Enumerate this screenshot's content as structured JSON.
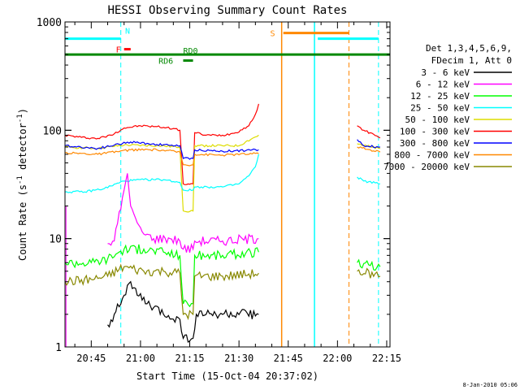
{
  "chart_data": {
    "type": "line",
    "title": "HESSI Observing Summary Count Rates",
    "xlabel": "Start Time (15-Oct-04 20:37:02)",
    "ylabel_main": "Count Rate (s",
    "ylabel_exp": "-1",
    "ylabel_tail": " detector",
    "ylabel_close": ")",
    "footer_date": "8-Jan-2010 05:06",
    "y_scale": "log",
    "ylim": [
      1,
      1000
    ],
    "xlim_minutes": [
      0,
      99
    ],
    "x_tick_labels": [
      "20:45",
      "21:00",
      "21:15",
      "21:30",
      "21:45",
      "22:00",
      "22:15"
    ],
    "x_tick_minutes": [
      8,
      23,
      38,
      53,
      68,
      83,
      98
    ],
    "y_tick_labels": [
      "1",
      "10",
      "100",
      "1000"
    ],
    "y_tick_values": [
      1,
      10,
      100,
      1000
    ],
    "legend_title": [
      "Det 1,3,4,5,6,9,",
      "FDecim 1, Att 0"
    ],
    "legend": [
      {
        "name": "3 - 6 keV",
        "color": "#000000"
      },
      {
        "name": "6 - 12 keV",
        "color": "#ff00ff"
      },
      {
        "name": "12 - 25 keV",
        "color": "#00ff00"
      },
      {
        "name": "25 - 50 keV",
        "color": "#00ffff"
      },
      {
        "name": "50 - 100 keV",
        "color": "#dddd00"
      },
      {
        "name": "100 - 300 keV",
        "color": "#ff0000"
      },
      {
        "name": "300 - 800 keV",
        "color": "#0000ff"
      },
      {
        "name": "800 - 7000 keV",
        "color": "#ff8800"
      },
      {
        "name": "7000 - 20000 keV",
        "color": "#888800"
      }
    ],
    "flags": [
      {
        "label": "N",
        "color": "#00ffff"
      },
      {
        "label": "F",
        "color": "#ff0000"
      },
      {
        "label": "RD0",
        "color": "#008800"
      },
      {
        "label": "RD6",
        "color": "#008800"
      },
      {
        "label": "S",
        "color": "#ff8800"
      }
    ],
    "series": [
      {
        "name": "100 - 300 keV",
        "color": "#ff0000",
        "segments": [
          [
            [
              0,
              90
            ],
            [
              5,
              86
            ],
            [
              10,
              84
            ],
            [
              14,
              90
            ],
            [
              18,
              105
            ],
            [
              23,
              110
            ],
            [
              28,
              108
            ],
            [
              33,
              104
            ],
            [
              35,
              100
            ],
            [
              36,
              32
            ],
            [
              39,
              32
            ],
            [
              39.5,
              95
            ],
            [
              43,
              90
            ],
            [
              48,
              90
            ],
            [
              52,
              95
            ],
            [
              56,
              110
            ],
            [
              58,
              140
            ],
            [
              59,
              175
            ]
          ],
          [
            [
              89,
              110
            ],
            [
              91,
              100
            ],
            [
              94,
              92
            ],
            [
              96,
              85
            ]
          ]
        ]
      },
      {
        "name": "50 - 100 keV",
        "color": "#dddd00",
        "segments": [
          [
            [
              0,
              70
            ],
            [
              10,
              68
            ],
            [
              18,
              73
            ],
            [
              28,
              72
            ],
            [
              35,
              70
            ],
            [
              36,
              18
            ],
            [
              39,
              18
            ],
            [
              39.5,
              72
            ],
            [
              48,
              72
            ],
            [
              53,
              72
            ],
            [
              55,
              78
            ],
            [
              59,
              90
            ]
          ],
          [
            [
              89,
              75
            ],
            [
              96,
              68
            ]
          ]
        ]
      },
      {
        "name": "300 - 800 keV",
        "color": "#0000ff",
        "segments": [
          [
            [
              0,
              72
            ],
            [
              10,
              68
            ],
            [
              15,
              73
            ],
            [
              20,
              78
            ],
            [
              28,
              74
            ],
            [
              35,
              72
            ],
            [
              36,
              55
            ],
            [
              39,
              55
            ],
            [
              39.5,
              66
            ],
            [
              48,
              64
            ],
            [
              59,
              66
            ]
          ],
          [
            [
              89,
              82
            ],
            [
              91,
              72
            ],
            [
              96,
              70
            ]
          ]
        ]
      },
      {
        "name": "800 - 7000 keV",
        "color": "#ff8800",
        "segments": [
          [
            [
              0,
              62
            ],
            [
              10,
              60
            ],
            [
              20,
              66
            ],
            [
              28,
              66
            ],
            [
              35,
              63
            ],
            [
              36,
              48
            ],
            [
              39,
              48
            ],
            [
              39.5,
              60
            ],
            [
              48,
              59
            ],
            [
              59,
              61
            ]
          ],
          [
            [
              89,
              70
            ],
            [
              96,
              63
            ]
          ]
        ]
      },
      {
        "name": "25 - 50 keV",
        "color": "#00ffff",
        "segments": [
          [
            [
              0,
              27
            ],
            [
              6,
              27
            ],
            [
              12,
              29
            ],
            [
              18,
              34
            ],
            [
              24,
              35
            ],
            [
              30,
              35
            ],
            [
              35,
              33
            ],
            [
              36,
              28
            ],
            [
              39,
              28
            ],
            [
              39.5,
              30
            ],
            [
              48,
              30
            ],
            [
              53,
              32
            ],
            [
              56,
              38
            ],
            [
              58,
              46
            ],
            [
              59,
              60
            ]
          ],
          [
            [
              89,
              37
            ],
            [
              91,
              34
            ],
            [
              96,
              32
            ]
          ]
        ]
      },
      {
        "name": "6 - 12 keV",
        "color": "#ff00ff",
        "segments": [
          [
            [
              13,
              9
            ],
            [
              15,
              9.5
            ],
            [
              18,
              28
            ],
            [
              19,
              40
            ],
            [
              20,
              20
            ],
            [
              22,
              14
            ],
            [
              24,
              11
            ],
            [
              27,
              10
            ],
            [
              32,
              10
            ],
            [
              35,
              9.5
            ],
            [
              36,
              8
            ],
            [
              39,
              8
            ],
            [
              39.5,
              9.5
            ],
            [
              48,
              9.5
            ],
            [
              59,
              10
            ]
          ]
        ]
      },
      {
        "name": "12 - 25 keV",
        "color": "#00ff00",
        "segments": [
          [
            [
              0,
              6
            ],
            [
              8,
              6
            ],
            [
              13,
              6.5
            ],
            [
              18,
              8
            ],
            [
              24,
              8
            ],
            [
              30,
              7.5
            ],
            [
              35,
              7
            ],
            [
              36,
              2.5
            ],
            [
              39,
              2.5
            ],
            [
              39.5,
              7
            ],
            [
              48,
              7
            ],
            [
              59,
              7.5
            ]
          ],
          [
            [
              89,
              6
            ],
            [
              96,
              5.5
            ]
          ]
        ]
      },
      {
        "name": "7000 - 20000 keV",
        "color": "#888800",
        "segments": [
          [
            [
              0,
              4
            ],
            [
              8,
              4.2
            ],
            [
              13,
              4.5
            ],
            [
              18,
              5.5
            ],
            [
              24,
              5
            ],
            [
              30,
              5
            ],
            [
              35,
              4.8
            ],
            [
              36,
              2
            ],
            [
              39,
              2
            ],
            [
              39.5,
              4.5
            ],
            [
              48,
              4.5
            ],
            [
              59,
              4.8
            ]
          ],
          [
            [
              89,
              5
            ],
            [
              96,
              4.5
            ]
          ]
        ]
      },
      {
        "name": "3 - 6 keV",
        "color": "#000000",
        "segments": [
          [
            [
              13,
              1.6
            ],
            [
              15,
              2
            ],
            [
              18,
              3
            ],
            [
              20,
              4
            ],
            [
              22,
              3
            ],
            [
              25,
              2.5
            ],
            [
              30,
              2
            ],
            [
              35,
              1.8
            ],
            [
              36,
              1.2
            ],
            [
              39,
              1.2
            ],
            [
              40,
              2
            ],
            [
              48,
              2
            ],
            [
              59,
              2
            ]
          ]
        ]
      }
    ],
    "markers": {
      "cyan_dashed_minutes": [
        17,
        95.5
      ],
      "cyan_solid_minutes": [
        76
      ],
      "orange_solid_minutes": [
        66
      ],
      "orange_dashed_minutes": [
        86.5
      ],
      "n_bars": [
        [
          0,
          17,
          700
        ],
        [
          77,
          95.5,
          700
        ]
      ],
      "s_bar": [
        [
          66.5,
          86.5,
          790
        ]
      ],
      "f_bar": [
        [
          18,
          20,
          560
        ]
      ],
      "rd0_bar": [
        [
          0,
          99,
          500
        ]
      ],
      "rd6_bar": [
        [
          36,
          39,
          440
        ]
      ]
    }
  }
}
